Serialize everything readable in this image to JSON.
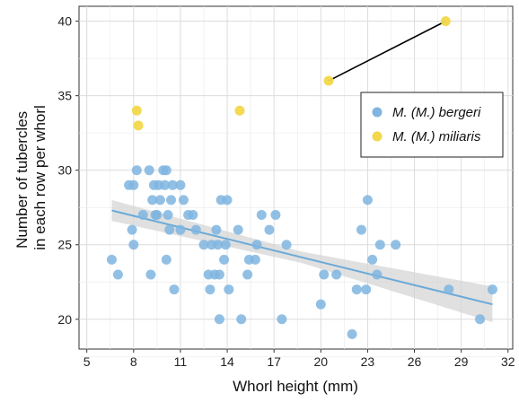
{
  "chart_data": {
    "type": "scatter",
    "xlabel": "Whorl height (mm)",
    "ylabel": "Number of tubercles\nin each row per whorl",
    "xlim": [
      4.5,
      32.3
    ],
    "ylim": [
      18.0,
      41.0
    ],
    "x_ticks": [
      5,
      8,
      11,
      14,
      17,
      20,
      23,
      26,
      29,
      32
    ],
    "y_ticks": [
      20,
      25,
      30,
      35,
      40
    ],
    "grid": true,
    "legend_position": "top-right",
    "colors": {
      "bergeri": "#7fb5e0",
      "miliaris": "#f2d84a",
      "trend_line": "#6aaad8",
      "confidence_band": "#d3d3d3",
      "connector": "#000000"
    },
    "series": [
      {
        "name": "M. (M.) bergeri",
        "points": [
          [
            6.6,
            24
          ],
          [
            7.0,
            23
          ],
          [
            7.7,
            29
          ],
          [
            7.9,
            26
          ],
          [
            8.0,
            29
          ],
          [
            8.0,
            25
          ],
          [
            8.2,
            30
          ],
          [
            8.6,
            27
          ],
          [
            9.0,
            30
          ],
          [
            9.1,
            23
          ],
          [
            9.2,
            28
          ],
          [
            9.3,
            29
          ],
          [
            9.4,
            27
          ],
          [
            9.5,
            27
          ],
          [
            9.6,
            29
          ],
          [
            9.7,
            28
          ],
          [
            9.9,
            30
          ],
          [
            10.0,
            29
          ],
          [
            10.1,
            30
          ],
          [
            10.1,
            24
          ],
          [
            10.2,
            27
          ],
          [
            10.3,
            26
          ],
          [
            10.4,
            28
          ],
          [
            10.5,
            29
          ],
          [
            10.6,
            22
          ],
          [
            11.0,
            26
          ],
          [
            11.0,
            29
          ],
          [
            11.2,
            28
          ],
          [
            11.5,
            27
          ],
          [
            11.8,
            27
          ],
          [
            12.0,
            26
          ],
          [
            12.5,
            25
          ],
          [
            12.8,
            23
          ],
          [
            12.9,
            22
          ],
          [
            13.0,
            25
          ],
          [
            13.2,
            23
          ],
          [
            13.3,
            26
          ],
          [
            13.4,
            25
          ],
          [
            13.5,
            23
          ],
          [
            13.5,
            20
          ],
          [
            13.6,
            28
          ],
          [
            13.8,
            24
          ],
          [
            13.9,
            25
          ],
          [
            14.0,
            28
          ],
          [
            14.1,
            22
          ],
          [
            14.7,
            26
          ],
          [
            14.9,
            20
          ],
          [
            15.3,
            23
          ],
          [
            15.4,
            24
          ],
          [
            15.8,
            24
          ],
          [
            15.9,
            25
          ],
          [
            16.2,
            27
          ],
          [
            16.7,
            26
          ],
          [
            17.1,
            27
          ],
          [
            17.5,
            20
          ],
          [
            17.8,
            25
          ],
          [
            20.0,
            21
          ],
          [
            20.2,
            23
          ],
          [
            21.0,
            23
          ],
          [
            22.0,
            19
          ],
          [
            22.3,
            22
          ],
          [
            22.6,
            26
          ],
          [
            22.9,
            22
          ],
          [
            23.0,
            28
          ],
          [
            23.3,
            24
          ],
          [
            23.6,
            23
          ],
          [
            23.8,
            25
          ],
          [
            24.8,
            25
          ],
          [
            28.2,
            22
          ],
          [
            30.2,
            20
          ],
          [
            31.0,
            22
          ]
        ]
      },
      {
        "name": "M. (M.) miliaris",
        "points": [
          [
            8.2,
            34
          ],
          [
            8.3,
            33
          ],
          [
            14.8,
            34
          ],
          [
            20.5,
            36
          ],
          [
            28.0,
            40
          ]
        ],
        "connected_pair": [
          [
            20.5,
            36
          ],
          [
            28.0,
            40
          ]
        ]
      }
    ],
    "trend_line": {
      "x": [
        6.6,
        31.0
      ],
      "y": [
        27.3,
        21.0
      ],
      "band_half_width_start": 0.7,
      "band_half_width_mid": 0.38,
      "band_half_width_end": 1.2
    }
  }
}
